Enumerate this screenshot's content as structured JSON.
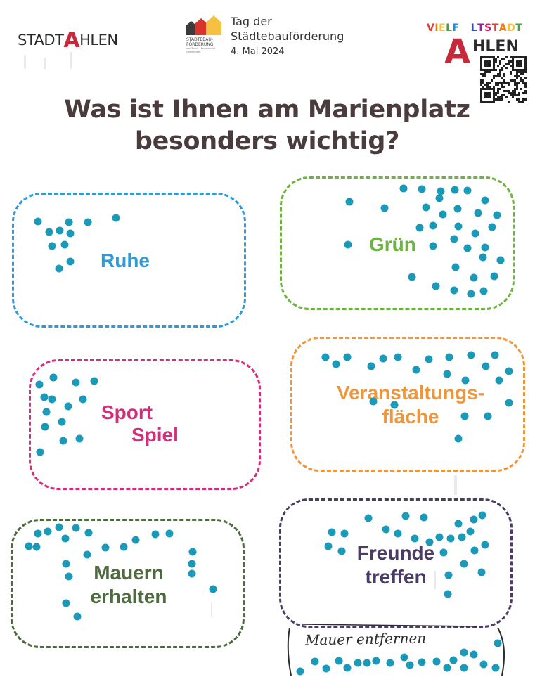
{
  "header": {
    "stadt_logo": {
      "prefix": "STADT",
      "a": "A",
      "suffix": "HLEN"
    },
    "tdsf": {
      "small_line1": "STÄDTEBAU-",
      "small_line2": "FÖRDERUNG",
      "small_sub": "von Bund, Ländern und Gemeinden",
      "title_line1": "Tag der",
      "title_line2": "Städtebauförderung",
      "date": "4. Mai 2024"
    },
    "altstadt_logo": {
      "vielf_letters": [
        "V",
        "I",
        "E",
        "L",
        "F"
      ],
      "vielf_colors": [
        "#e53935",
        "#f57c00",
        "#fbc02d",
        "#43a047",
        "#1e88e5"
      ],
      "altstadt_letters": [
        "L",
        "T",
        "S",
        "T",
        "A",
        "D",
        "T"
      ],
      "altstadt_colors": [
        "#3949ab",
        "#8e24aa",
        "#d81b60",
        "#e53935",
        "#f57c00",
        "#fbc02d",
        "#43a047"
      ],
      "a": "A",
      "hlen": "HLEN"
    }
  },
  "question": {
    "line1": "Was ist Ihnen am Marienplatz",
    "line2": "besonders wichtig?"
  },
  "categories": [
    {
      "label_line1": "Ruhe",
      "label_line2": "",
      "color": "#2e9bd8"
    },
    {
      "label_line1": "Grün",
      "label_line2": "",
      "color": "#6cb33f"
    },
    {
      "label_line1": "Sport",
      "label_line2": "Spiel",
      "color": "#d62d7a"
    },
    {
      "label_line1": "Veranstaltungs-",
      "label_line2": "fläche",
      "color": "#f0963a"
    },
    {
      "label_line1": "Mauern",
      "label_line2": "erhalten",
      "color": "#4e6b3f"
    },
    {
      "label_line1": "Freunde",
      "label_line2": "treffen",
      "color": "#4b3c66"
    }
  ],
  "handwritten_note": "Mauer entfernen",
  "dot_color": "#1a9ab8"
}
